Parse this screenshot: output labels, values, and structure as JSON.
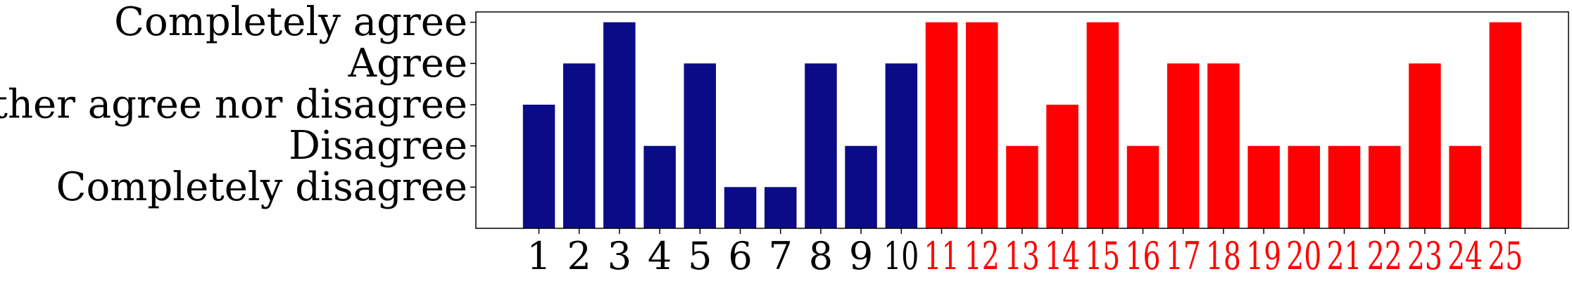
{
  "chart_data": {
    "type": "bar",
    "categories": [
      "1",
      "2",
      "3",
      "4",
      "5",
      "6",
      "7",
      "8",
      "9",
      "10",
      "11",
      "12",
      "13",
      "14",
      "15",
      "16",
      "17",
      "18",
      "19",
      "20",
      "21",
      "22",
      "23",
      "24",
      "25"
    ],
    "values": [
      3,
      4,
      5,
      2,
      4,
      1,
      1,
      4,
      2,
      4,
      5,
      5,
      2,
      3,
      5,
      2,
      4,
      4,
      2,
      2,
      2,
      2,
      4,
      2,
      5
    ],
    "group_colors": {
      "group_1": "#0b0b87",
      "group_2": "#ff0000"
    },
    "bar_groups": [
      "group_1",
      "group_1",
      "group_1",
      "group_1",
      "group_1",
      "group_1",
      "group_1",
      "group_1",
      "group_1",
      "group_1",
      "group_2",
      "group_2",
      "group_2",
      "group_2",
      "group_2",
      "group_2",
      "group_2",
      "group_2",
      "group_2",
      "group_2",
      "group_2",
      "group_2",
      "group_2",
      "group_2",
      "group_2"
    ],
    "y_ticks": [
      {
        "value": 1,
        "label": "Completely disagree"
      },
      {
        "value": 2,
        "label": "Disagree"
      },
      {
        "value": 3,
        "label": "Neither agree nor disagree"
      },
      {
        "value": 4,
        "label": "Agree"
      },
      {
        "value": 5,
        "label": "Completely agree"
      }
    ],
    "ylim": [
      0,
      5.25
    ],
    "grid": false,
    "legend": "none",
    "title": "",
    "xlabel": "",
    "ylabel": ""
  }
}
